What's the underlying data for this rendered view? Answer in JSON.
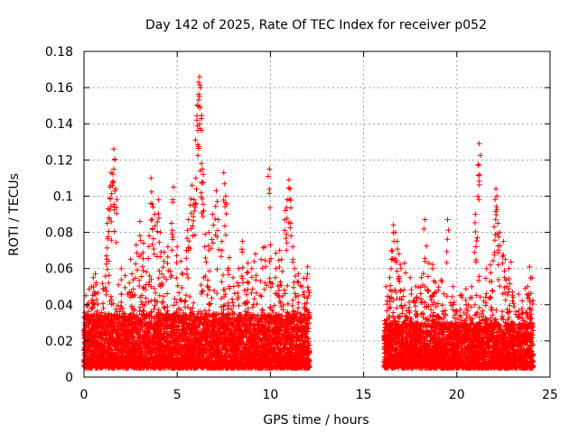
{
  "chart_data": {
    "type": "scatter",
    "title": "Day 142 of 2025, Rate Of TEC Index for receiver p052",
    "xlabel": "GPS time / hours",
    "ylabel": "ROTI / TECUs",
    "xlim": [
      0,
      25
    ],
    "ylim": [
      0,
      0.18
    ],
    "xticks": [
      0,
      5,
      10,
      15,
      20,
      25
    ],
    "xtick_labels": [
      "0",
      "5",
      "10",
      "15",
      "20",
      "25"
    ],
    "yticks": [
      0,
      0.02,
      0.04,
      0.06,
      0.08,
      0.1,
      0.12,
      0.14,
      0.16,
      0.18
    ],
    "ytick_labels": [
      "0",
      "0.02",
      "0.04",
      "0.06",
      "0.08",
      "0.1",
      "0.12",
      "0.14",
      "0.16",
      "0.18"
    ],
    "grid": true,
    "marker": "+",
    "series": [
      {
        "name": "p052 ROTI",
        "color": "#ff0000",
        "segments": [
          {
            "x_start": 0.0,
            "x_end": 12.1,
            "baseline": [
              0.005,
              0.035
            ]
          },
          {
            "x_start": 16.1,
            "x_end": 24.1,
            "baseline": [
              0.005,
              0.03
            ]
          }
        ],
        "points": [
          {
            "x": 0.1,
            "y": 0.045
          },
          {
            "x": 0.2,
            "y": 0.04
          },
          {
            "x": 0.4,
            "y": 0.05
          },
          {
            "x": 0.5,
            "y": 0.055
          },
          {
            "x": 0.55,
            "y": 0.046
          },
          {
            "x": 1.2,
            "y": 0.067
          },
          {
            "x": 1.25,
            "y": 0.085
          },
          {
            "x": 1.3,
            "y": 0.093
          },
          {
            "x": 1.4,
            "y": 0.105
          },
          {
            "x": 1.45,
            "y": 0.113
          },
          {
            "x": 1.55,
            "y": 0.108
          },
          {
            "x": 1.6,
            "y": 0.126
          },
          {
            "x": 1.65,
            "y": 0.12
          },
          {
            "x": 1.7,
            "y": 0.104
          },
          {
            "x": 2.0,
            "y": 0.06
          },
          {
            "x": 2.5,
            "y": 0.065
          },
          {
            "x": 2.8,
            "y": 0.073
          },
          {
            "x": 3.0,
            "y": 0.086
          },
          {
            "x": 3.2,
            "y": 0.074
          },
          {
            "x": 3.5,
            "y": 0.078
          },
          {
            "x": 3.6,
            "y": 0.11
          },
          {
            "x": 3.7,
            "y": 0.094
          },
          {
            "x": 3.8,
            "y": 0.09
          },
          {
            "x": 4.0,
            "y": 0.098
          },
          {
            "x": 4.1,
            "y": 0.08
          },
          {
            "x": 4.3,
            "y": 0.069
          },
          {
            "x": 4.5,
            "y": 0.072
          },
          {
            "x": 4.7,
            "y": 0.085
          },
          {
            "x": 4.8,
            "y": 0.105
          },
          {
            "x": 5.0,
            "y": 0.072
          },
          {
            "x": 5.2,
            "y": 0.064
          },
          {
            "x": 5.5,
            "y": 0.07
          },
          {
            "x": 5.6,
            "y": 0.087
          },
          {
            "x": 5.7,
            "y": 0.095
          },
          {
            "x": 5.8,
            "y": 0.106
          },
          {
            "x": 5.9,
            "y": 0.098
          },
          {
            "x": 6.0,
            "y": 0.11
          },
          {
            "x": 6.05,
            "y": 0.142
          },
          {
            "x": 6.1,
            "y": 0.15
          },
          {
            "x": 6.15,
            "y": 0.163
          },
          {
            "x": 6.2,
            "y": 0.166
          },
          {
            "x": 6.25,
            "y": 0.16
          },
          {
            "x": 6.3,
            "y": 0.118
          },
          {
            "x": 6.35,
            "y": 0.115
          },
          {
            "x": 6.4,
            "y": 0.112
          },
          {
            "x": 6.5,
            "y": 0.079
          },
          {
            "x": 6.7,
            "y": 0.08
          },
          {
            "x": 6.9,
            "y": 0.09
          },
          {
            "x": 7.1,
            "y": 0.103
          },
          {
            "x": 7.2,
            "y": 0.087
          },
          {
            "x": 7.4,
            "y": 0.075
          },
          {
            "x": 7.5,
            "y": 0.113
          },
          {
            "x": 7.6,
            "y": 0.1
          },
          {
            "x": 7.8,
            "y": 0.066
          },
          {
            "x": 8.0,
            "y": 0.055
          },
          {
            "x": 8.3,
            "y": 0.06
          },
          {
            "x": 8.5,
            "y": 0.075
          },
          {
            "x": 8.8,
            "y": 0.063
          },
          {
            "x": 9.0,
            "y": 0.06
          },
          {
            "x": 9.2,
            "y": 0.068
          },
          {
            "x": 9.5,
            "y": 0.065
          },
          {
            "x": 9.7,
            "y": 0.072
          },
          {
            "x": 9.95,
            "y": 0.115
          },
          {
            "x": 10.0,
            "y": 0.073
          },
          {
            "x": 10.3,
            "y": 0.06
          },
          {
            "x": 10.5,
            "y": 0.07
          },
          {
            "x": 10.6,
            "y": 0.065
          },
          {
            "x": 10.8,
            "y": 0.092
          },
          {
            "x": 10.9,
            "y": 0.098
          },
          {
            "x": 11.0,
            "y": 0.109
          },
          {
            "x": 11.05,
            "y": 0.104
          },
          {
            "x": 11.2,
            "y": 0.072
          },
          {
            "x": 11.3,
            "y": 0.06
          },
          {
            "x": 11.5,
            "y": 0.057
          },
          {
            "x": 11.7,
            "y": 0.05
          },
          {
            "x": 12.0,
            "y": 0.061
          },
          {
            "x": 16.2,
            "y": 0.05
          },
          {
            "x": 16.4,
            "y": 0.055
          },
          {
            "x": 16.5,
            "y": 0.07
          },
          {
            "x": 16.6,
            "y": 0.084
          },
          {
            "x": 16.7,
            "y": 0.08
          },
          {
            "x": 16.8,
            "y": 0.075
          },
          {
            "x": 16.9,
            "y": 0.068
          },
          {
            "x": 17.0,
            "y": 0.06
          },
          {
            "x": 17.2,
            "y": 0.063
          },
          {
            "x": 17.5,
            "y": 0.055
          },
          {
            "x": 17.8,
            "y": 0.05
          },
          {
            "x": 18.1,
            "y": 0.055
          },
          {
            "x": 18.3,
            "y": 0.087
          },
          {
            "x": 18.5,
            "y": 0.063
          },
          {
            "x": 18.7,
            "y": 0.06
          },
          {
            "x": 19.0,
            "y": 0.048
          },
          {
            "x": 19.3,
            "y": 0.046
          },
          {
            "x": 19.5,
            "y": 0.087
          },
          {
            "x": 19.8,
            "y": 0.05
          },
          {
            "x": 20.2,
            "y": 0.045
          },
          {
            "x": 20.5,
            "y": 0.04
          },
          {
            "x": 20.8,
            "y": 0.05
          },
          {
            "x": 21.0,
            "y": 0.09
          },
          {
            "x": 21.1,
            "y": 0.077
          },
          {
            "x": 21.15,
            "y": 0.117
          },
          {
            "x": 21.2,
            "y": 0.129
          },
          {
            "x": 21.6,
            "y": 0.06
          },
          {
            "x": 21.8,
            "y": 0.062
          },
          {
            "x": 22.0,
            "y": 0.083
          },
          {
            "x": 22.1,
            "y": 0.104
          },
          {
            "x": 22.15,
            "y": 0.1
          },
          {
            "x": 22.2,
            "y": 0.085
          },
          {
            "x": 22.3,
            "y": 0.08
          },
          {
            "x": 22.5,
            "y": 0.075
          },
          {
            "x": 22.6,
            "y": 0.065
          },
          {
            "x": 22.8,
            "y": 0.06
          },
          {
            "x": 23.0,
            "y": 0.045
          },
          {
            "x": 23.5,
            "y": 0.035
          },
          {
            "x": 23.8,
            "y": 0.05
          },
          {
            "x": 23.85,
            "y": 0.045
          },
          {
            "x": 23.9,
            "y": 0.061
          },
          {
            "x": 23.95,
            "y": 0.033
          }
        ]
      }
    ]
  }
}
